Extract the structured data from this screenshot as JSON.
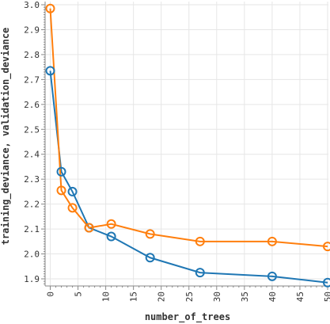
{
  "chart_data": {
    "type": "line",
    "xlabel": "number_of_trees",
    "ylabel": "training_deviance, validation_deviance",
    "xlim": [
      0,
      50
    ],
    "ylim": [
      1.88,
      3.0
    ],
    "grid": true,
    "legend": "none",
    "x_ticks": [
      "0",
      "5",
      "10",
      "15",
      "20",
      "25",
      "30",
      "35",
      "40",
      "45",
      "50"
    ],
    "y_ticks": [
      "1.9",
      "2.0",
      "2.1",
      "2.2",
      "2.3",
      "2.4",
      "2.5",
      "2.6",
      "2.7",
      "2.8",
      "2.9",
      "3.0"
    ],
    "x_tick_values": [
      0,
      5,
      10,
      15,
      20,
      25,
      30,
      35,
      40,
      45,
      50
    ],
    "y_tick_values": [
      1.9,
      2.0,
      2.1,
      2.2,
      2.3,
      2.4,
      2.5,
      2.6,
      2.7,
      2.8,
      2.9,
      3.0
    ],
    "series": [
      {
        "key": "training",
        "color": "#1f77b4",
        "x": [
          0,
          2,
          4,
          7,
          11,
          18,
          27,
          40,
          50
        ],
        "y": [
          2.735,
          2.33,
          2.25,
          2.105,
          2.07,
          1.985,
          1.925,
          1.91,
          1.885
        ]
      },
      {
        "key": "validation",
        "color": "#ff7f0e",
        "x": [
          0,
          2,
          4,
          7,
          11,
          18,
          27,
          40,
          50
        ],
        "y": [
          2.985,
          2.255,
          2.185,
          2.105,
          2.12,
          2.08,
          2.05,
          2.05,
          2.03
        ]
      }
    ]
  }
}
